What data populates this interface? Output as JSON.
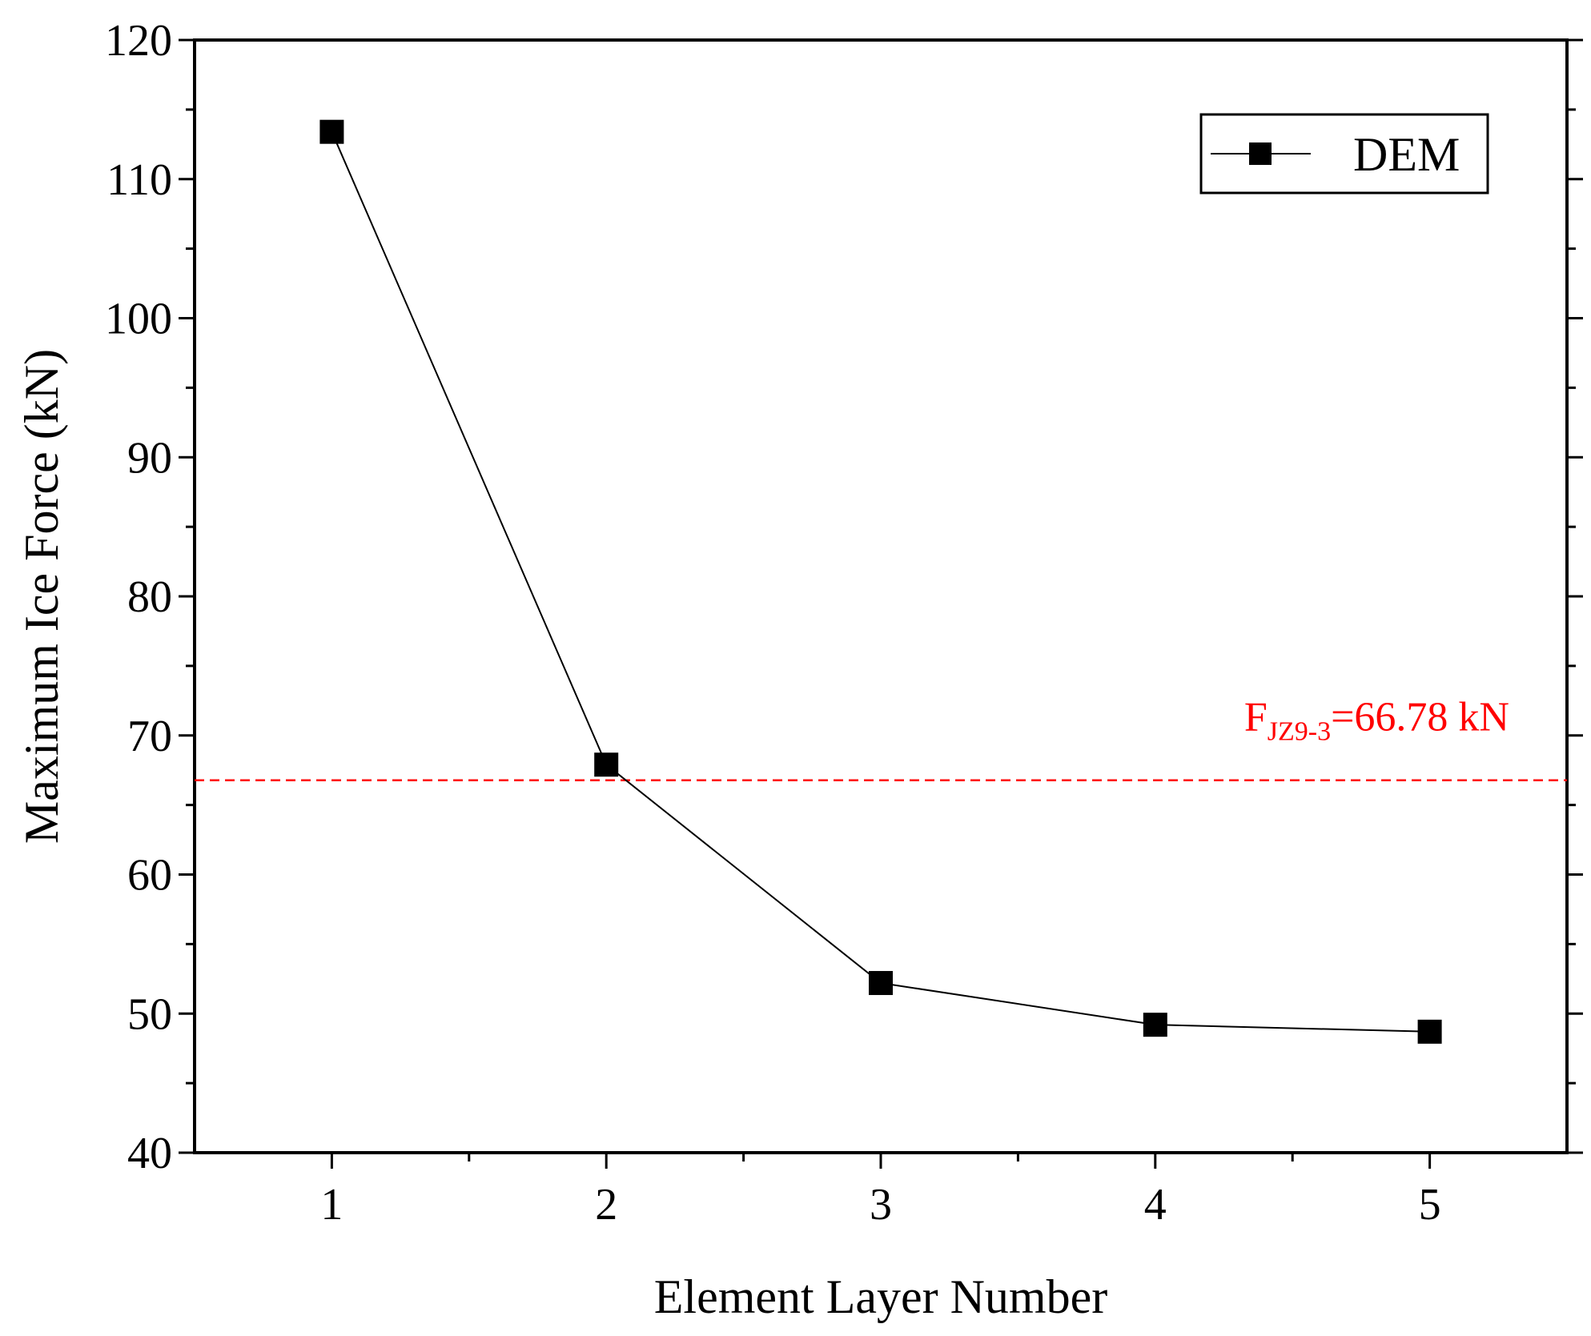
{
  "chart_data": {
    "type": "line",
    "xlabel": "Element Layer Number",
    "ylabel": "Maximum Ice Force (kN)",
    "xlim": [
      0.5,
      5.5
    ],
    "ylim": [
      40,
      120
    ],
    "x_ticks": [
      "1",
      "2",
      "3",
      "4",
      "5"
    ],
    "y_ticks": [
      "40",
      "50",
      "60",
      "70",
      "80",
      "90",
      "100",
      "110",
      "120"
    ],
    "grid": false,
    "legend_position": "top-right",
    "series": [
      {
        "name": "DEM",
        "marker": "square",
        "color": "#000000",
        "x": [
          1,
          2,
          3,
          4,
          5
        ],
        "y": [
          113.4,
          67.9,
          52.2,
          49.2,
          48.7
        ]
      }
    ],
    "reference_line": {
      "value": 66.78,
      "color": "#ff0000",
      "style": "dashed",
      "label_main": "F",
      "label_sub": "JZ9-3",
      "label_rest": "=66.78 kN"
    }
  }
}
